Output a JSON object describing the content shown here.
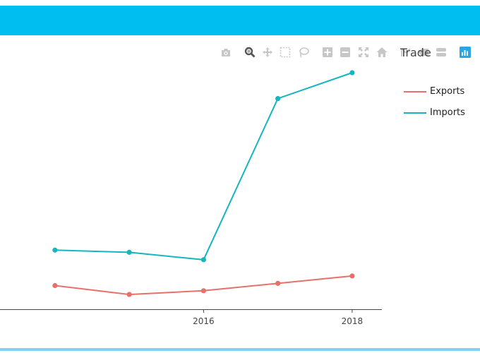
{
  "colors": {
    "header": "#00bff0",
    "bottom_rule": "#7fd4f4",
    "axis": "#444444",
    "modebar_icon": "#c7c7c7",
    "modebar_active": "#555555",
    "modebar_highlight": "#2aa6e6"
  },
  "modebar": {
    "icons": [
      "camera-icon",
      "zoom-icon",
      "pan-icon",
      "box-select-icon",
      "lasso-select-icon",
      "zoom-in-icon",
      "zoom-out-icon",
      "autoscale-icon",
      "reset-axes-icon",
      "spike-lines-icon",
      "hover-closest-icon",
      "hover-compare-icon",
      "plotly-logo-icon"
    ]
  },
  "chart_data": {
    "type": "line",
    "title": "Trade",
    "x": [
      2014,
      2015,
      2016,
      2017,
      2018
    ],
    "xticks": [
      "2016",
      "2018"
    ],
    "xlim": [
      2013.26,
      2018.4
    ],
    "ylim": [
      0,
      320
    ],
    "series": [
      {
        "name": "Exports",
        "color": "#e8706a",
        "values": [
          32,
          20,
          25,
          35,
          45
        ]
      },
      {
        "name": "Imports",
        "color": "#16b5bf",
        "values": [
          80,
          77,
          67,
          285,
          320
        ]
      }
    ],
    "legend_position": "right",
    "grid": false
  }
}
